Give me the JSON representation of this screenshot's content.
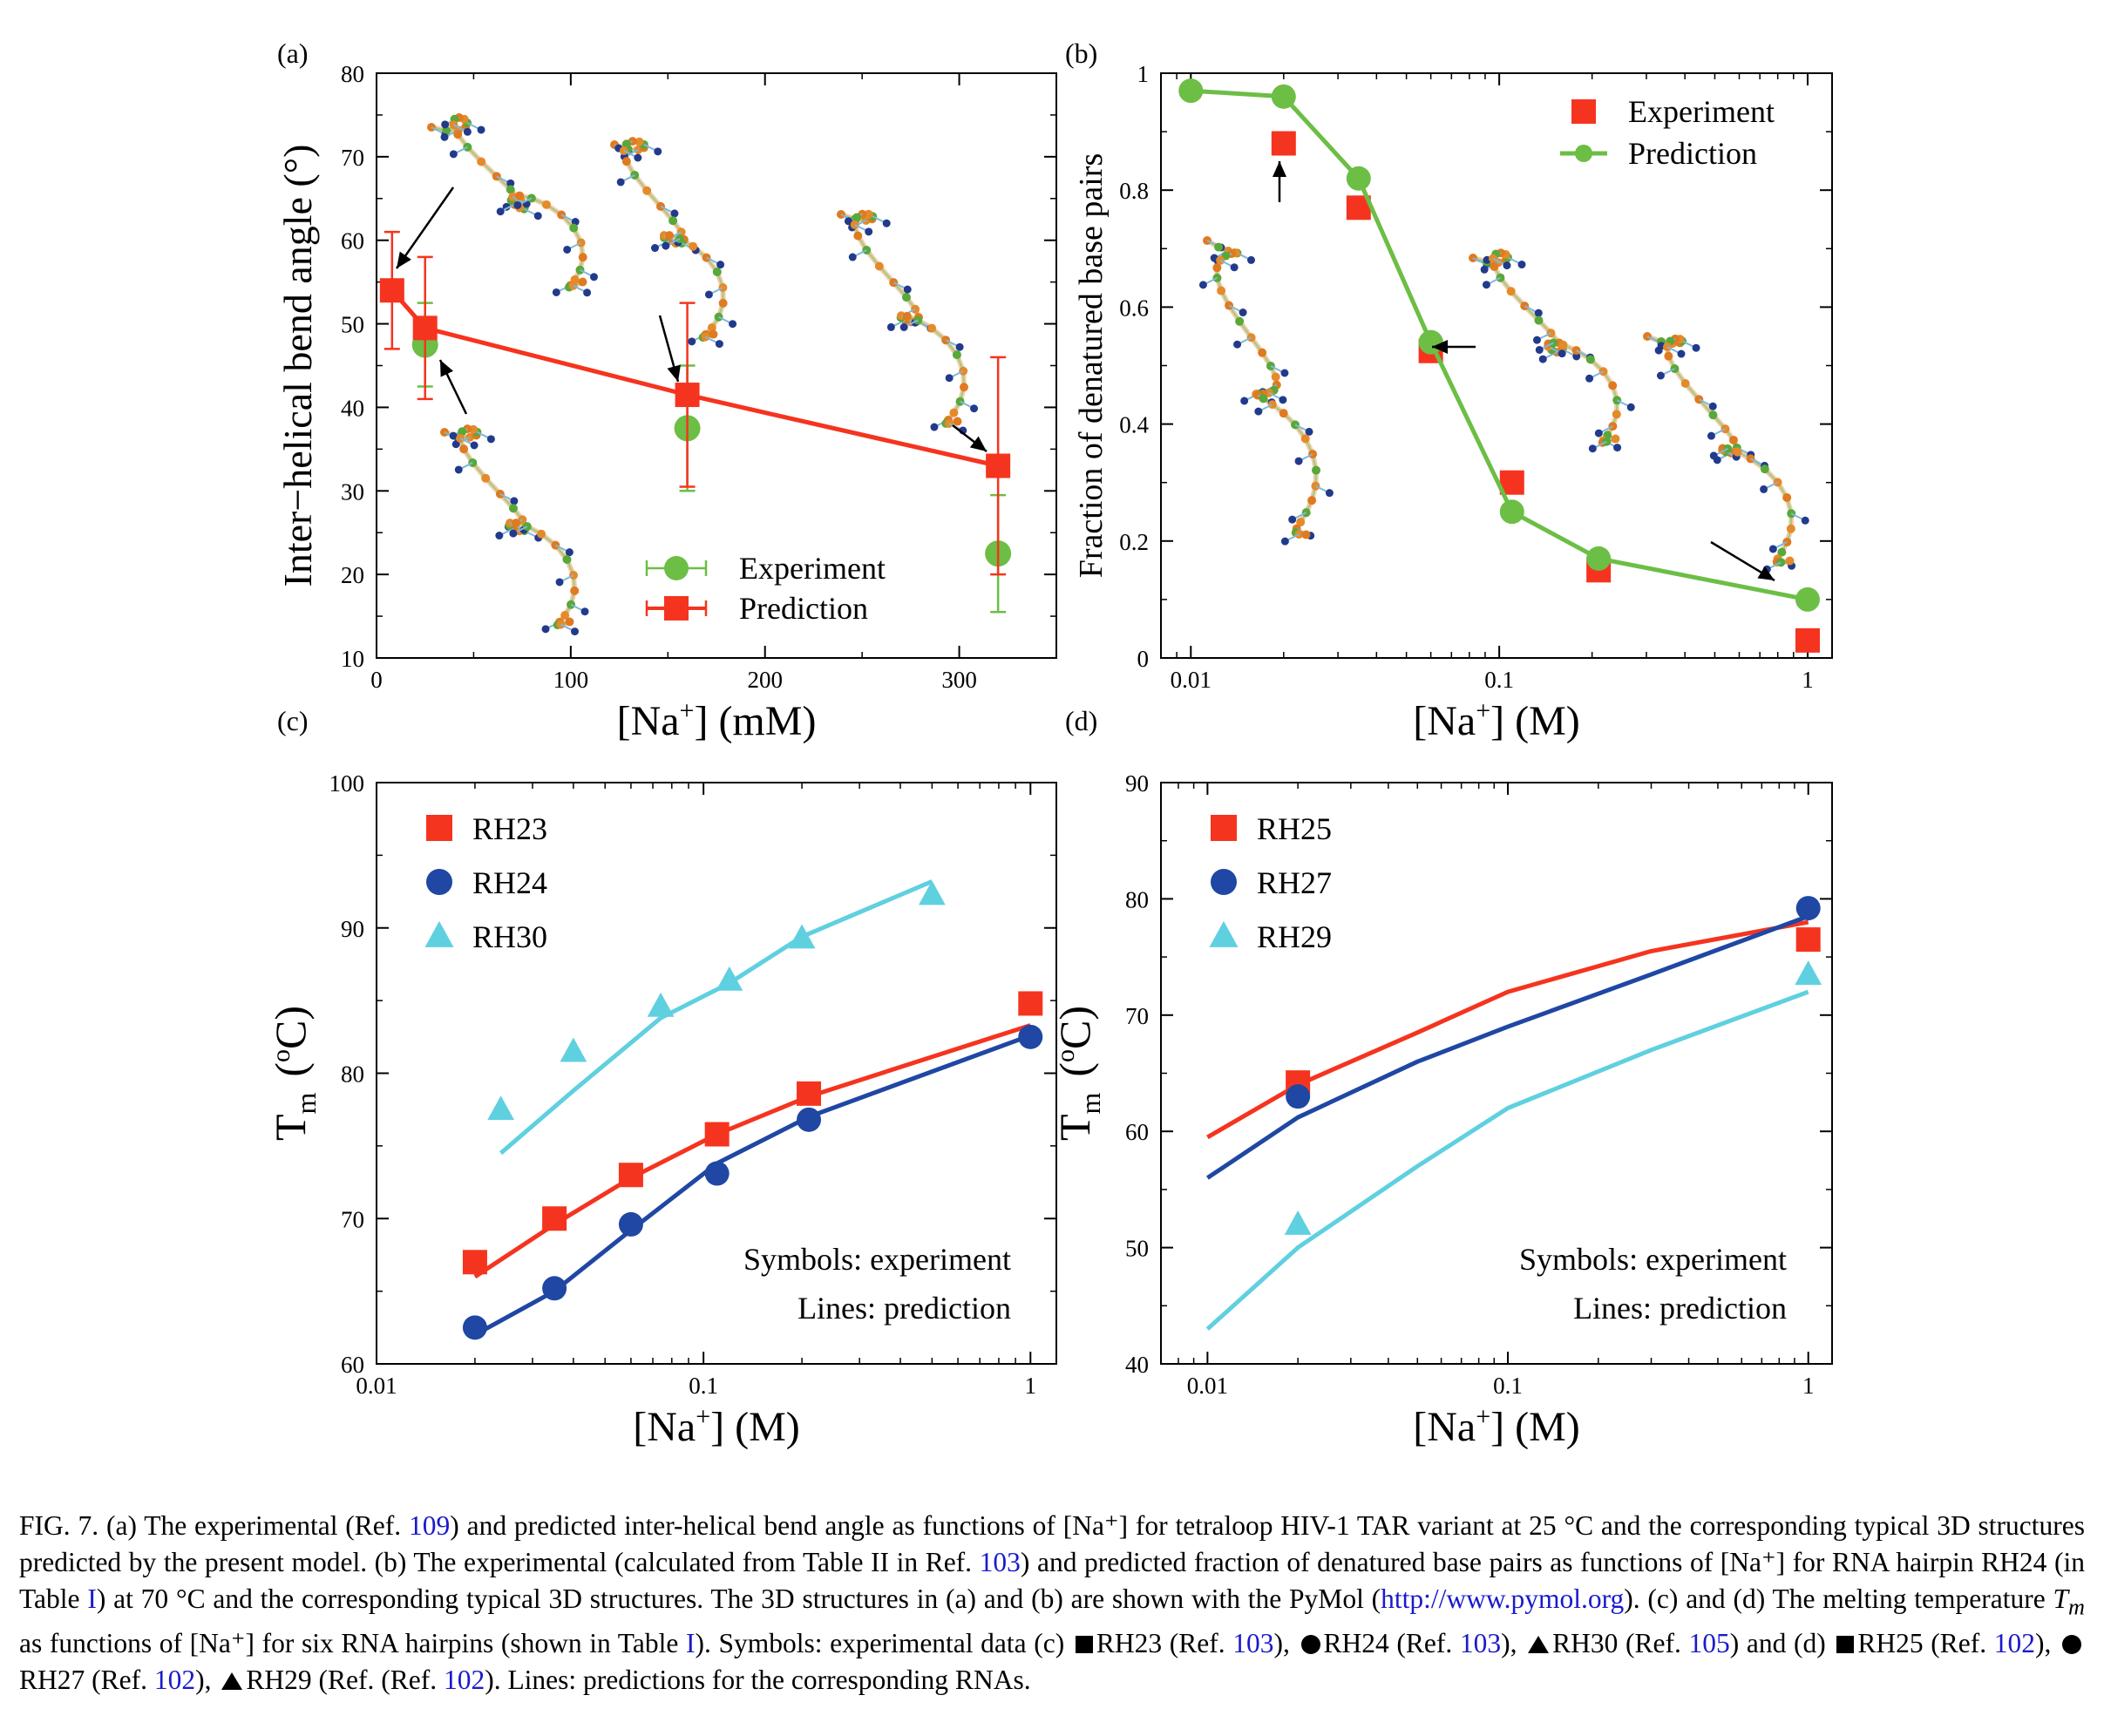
{
  "colors": {
    "red": "#f5341f",
    "green": "#6cbe45",
    "blue": "#1f47a3",
    "cyan": "#5fd0e0",
    "link": "#1a1acc"
  },
  "chart_data": [
    {
      "id": "a",
      "panel_label": "(a)",
      "type": "line",
      "xscale": "linear",
      "xlim": [
        0,
        350
      ],
      "ylim": [
        10,
        80
      ],
      "xticks": [
        0,
        100,
        200,
        300
      ],
      "yticks": [
        10,
        20,
        30,
        40,
        50,
        60,
        70,
        80
      ],
      "xlabel": "[Na⁺] (mM)",
      "ylabel": "Inter−helical bend angle (°)",
      "legend_position": "bottom-right",
      "series": [
        {
          "name": "Experiment",
          "marker": "circle",
          "color": "#6cbe45",
          "line": false,
          "x": [
            25,
            160,
            320
          ],
          "y": [
            47.5,
            37.5,
            22.5
          ],
          "err": [
            5,
            7.5,
            7
          ]
        },
        {
          "name": "Prediction",
          "marker": "square",
          "color": "#f5341f",
          "line": true,
          "x": [
            8,
            25,
            160,
            320
          ],
          "y": [
            54,
            49.5,
            41.5,
            33
          ],
          "err": [
            7,
            8.5,
            11,
            13
          ]
        }
      ]
    },
    {
      "id": "b",
      "panel_label": "(b)",
      "type": "line",
      "xscale": "log",
      "xlim": [
        0.008,
        1.2
      ],
      "ylim": [
        0,
        1
      ],
      "xticks": [
        0.01,
        0.1,
        1
      ],
      "xtick_labels": [
        "0.01",
        "0.1",
        "1"
      ],
      "yticks": [
        0,
        0.2,
        0.4,
        0.6,
        0.8,
        1
      ],
      "xlabel": "[Na⁺] (M)",
      "ylabel": "Fraction of denatured base pairs",
      "legend_position": "top-right",
      "series": [
        {
          "name": "Experiment",
          "marker": "square",
          "color": "#f5341f",
          "line": false,
          "x": [
            0.02,
            0.035,
            0.06,
            0.11,
            0.21,
            1.0
          ],
          "y": [
            0.88,
            0.77,
            0.525,
            0.3,
            0.15,
            0.03
          ]
        },
        {
          "name": "Prediction",
          "marker": "circle",
          "color": "#6cbe45",
          "line": true,
          "x": [
            0.01,
            0.02,
            0.035,
            0.06,
            0.11,
            0.21,
            1.0
          ],
          "y": [
            0.97,
            0.96,
            0.82,
            0.54,
            0.25,
            0.17,
            0.1
          ]
        }
      ]
    },
    {
      "id": "c",
      "panel_label": "(c)",
      "type": "scatter",
      "xscale": "log",
      "xlim": [
        0.01,
        1.2
      ],
      "ylim": [
        60,
        100
      ],
      "xticks": [
        0.01,
        0.1,
        1
      ],
      "xtick_labels": [
        "0.01",
        "0.1",
        "1"
      ],
      "yticks": [
        60,
        70,
        80,
        90,
        100
      ],
      "xlabel": "[Na⁺] (M)",
      "ylabel": "Tm (°C)",
      "legend_position": "top-left",
      "annotations": [
        "Symbols: experiment",
        "Lines: prediction"
      ],
      "series": [
        {
          "name": "RH23",
          "marker": "square",
          "color": "#f5341f",
          "x": [
            0.02,
            0.035,
            0.06,
            0.11,
            0.21,
            1.0
          ],
          "y": [
            67,
            70,
            73,
            75.8,
            78.6,
            84.8
          ],
          "line_x": [
            0.02,
            0.035,
            0.06,
            0.11,
            0.21,
            1.0
          ],
          "line_y": [
            66,
            69.6,
            72.8,
            75.8,
            78.4,
            83.3
          ]
        },
        {
          "name": "RH24",
          "marker": "circle",
          "color": "#1f47a3",
          "x": [
            0.02,
            0.035,
            0.06,
            0.11,
            0.21,
            1.0
          ],
          "y": [
            62.5,
            65.2,
            69.6,
            73.1,
            76.8,
            82.5
          ],
          "line_x": [
            0.02,
            0.035,
            0.06,
            0.11,
            0.21,
            1.0
          ],
          "line_y": [
            62,
            65,
            69.2,
            73.8,
            77,
            82.6
          ]
        },
        {
          "name": "RH30",
          "marker": "triangle",
          "color": "#5fd0e0",
          "x": [
            0.024,
            0.04,
            0.074,
            0.12,
            0.2,
            0.5
          ],
          "y": [
            77.5,
            81.5,
            84.6,
            86.4,
            89.3,
            92.3
          ],
          "line_x": [
            0.024,
            0.04,
            0.074,
            0.12,
            0.2,
            0.5
          ],
          "line_y": [
            74.5,
            78.8,
            83.8,
            86.2,
            89.4,
            93.2
          ]
        }
      ]
    },
    {
      "id": "d",
      "panel_label": "(d)",
      "type": "scatter",
      "xscale": "log",
      "xlim": [
        0.007,
        1.2
      ],
      "ylim": [
        40,
        90
      ],
      "xticks": [
        0.01,
        0.1,
        1
      ],
      "xtick_labels": [
        "0.01",
        "0.1",
        "1"
      ],
      "yticks": [
        40,
        50,
        60,
        70,
        80,
        90
      ],
      "xlabel": "[Na⁺] (M)",
      "ylabel": "Tm (°C)",
      "legend_position": "top-left",
      "annotations": [
        "Symbols: experiment",
        "Lines: prediction"
      ],
      "series": [
        {
          "name": "RH25",
          "marker": "square",
          "color": "#f5341f",
          "x": [
            0.02,
            1.0
          ],
          "y": [
            64.2,
            76.5
          ],
          "line_x": [
            0.01,
            0.02,
            0.05,
            0.1,
            0.3,
            1.0
          ],
          "line_y": [
            59.5,
            64,
            68.5,
            72,
            75.5,
            78
          ]
        },
        {
          "name": "RH27",
          "marker": "circle",
          "color": "#1f47a3",
          "x": [
            0.02,
            1.0
          ],
          "y": [
            63,
            79.2
          ],
          "line_x": [
            0.01,
            0.02,
            0.05,
            0.1,
            0.3,
            1.0
          ],
          "line_y": [
            56,
            61.2,
            66,
            69,
            73.5,
            78.5
          ]
        },
        {
          "name": "RH29",
          "marker": "triangle",
          "color": "#5fd0e0",
          "x": [
            0.02,
            1.0
          ],
          "y": [
            52,
            73.5
          ],
          "line_x": [
            0.01,
            0.02,
            0.05,
            0.1,
            0.3,
            1.0
          ],
          "line_y": [
            43,
            50,
            57,
            62,
            67,
            72
          ]
        }
      ]
    }
  ],
  "caption": {
    "fig": "FIG. 7.",
    "a1": "(a) The experimental (Ref.",
    "ref109": "109",
    "a2": ") and predicted inter-helical bend angle as functions of [Na⁺] for tetraloop HIV-1 TAR variant at 25 °C and the corresponding typical 3D structures predicted by the present model. (b) The experimental (calculated from Table II in Ref.",
    "ref103a": "103",
    "b2": ") and predicted fraction of denatured base pairs as functions of [Na⁺] for RNA hairpin RH24 (in Table",
    "tableI_a": "I",
    "b3": ") at 70 °C and the corresponding typical 3D structures. The 3D structures in (a) and (b) are shown with the PyMol (",
    "url": "http://www.pymol.org",
    "c1": "). (c) and (d) The melting temperature",
    "tm": "T",
    "tm_sub": "m",
    "c2": "as functions of [Na⁺] for six RNA hairpins (shown in Table",
    "tableI_b": "I",
    "c3": "). Symbols: experimental data (c)",
    "rh23": "RH23 (Ref.",
    "ref103b": "103",
    "rh24": "RH24 (Ref.",
    "ref103c": "103",
    "rh30": "RH30 (Ref.",
    "ref105": "105",
    "and_d": ") and (d)",
    "rh25": "RH25 (Ref.",
    "ref102a": "102",
    "rh27": "RH27 (Ref.",
    "ref102b": "102",
    "rh29": "RH29 (Ref.",
    "ref102c": "102",
    "tail": "). Lines: predictions for the corresponding RNAs."
  }
}
